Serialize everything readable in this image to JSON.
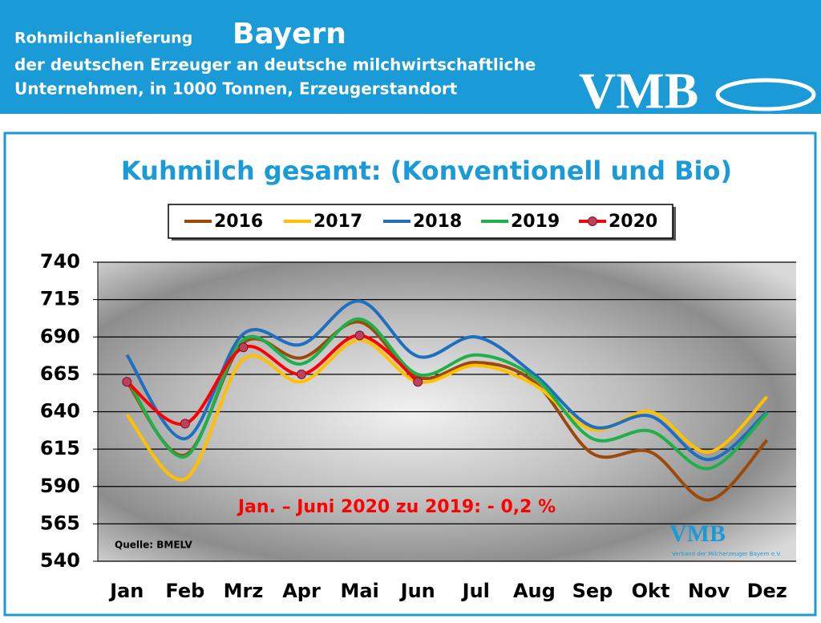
{
  "header": {
    "title_small": "Rohmilchanlieferung",
    "title_large": "Bayern",
    "line2": "der deutschen Erzeuger an deutsche milchwirtschaftliche",
    "line3": "Unternehmen, in 1000 Tonnen, Erzeugerstandort",
    "logo": "VMB"
  },
  "chart_data": {
    "type": "line",
    "title": "Kuhmilch gesamt: (Konventionell und Bio)",
    "annotation": "Jan. – Juni 2020 zu 2019: - 0,2 %",
    "source": "Quelle:  BMELV",
    "logo": "VMB",
    "logo_caption": "Verband der Milcherzeuger Bayern e.V.",
    "categories": [
      "Jan",
      "Feb",
      "Mrz",
      "Apr",
      "Mai",
      "Jun",
      "Jul",
      "Aug",
      "Sep",
      "Okt",
      "Nov",
      "Dez"
    ],
    "series": [
      {
        "name": "2016",
        "color": "#9b4a0c",
        "values": [
          660,
          611,
          686,
          676,
          700,
          663,
          673,
          660,
          612,
          613,
          581,
          621
        ]
      },
      {
        "name": "2017",
        "color": "#ffc000",
        "values": [
          638,
          595,
          675,
          660,
          688,
          660,
          671,
          658,
          628,
          640,
          613,
          650
        ]
      },
      {
        "name": "2018",
        "color": "#1f6fc0",
        "values": [
          678,
          622,
          692,
          685,
          714,
          677,
          690,
          665,
          630,
          637,
          608,
          640
        ]
      },
      {
        "name": "2019",
        "color": "#1fb04a",
        "values": [
          662,
          610,
          688,
          672,
          702,
          665,
          678,
          663,
          622,
          627,
          602,
          639
        ]
      },
      {
        "name": "2020",
        "color": "#ff0000",
        "marker": true,
        "values": [
          660,
          632,
          683,
          665,
          691,
          660,
          null,
          null,
          null,
          null,
          null,
          null
        ]
      }
    ],
    "ylim": [
      540,
      740
    ],
    "yticks": [
      540,
      565,
      590,
      615,
      640,
      665,
      690,
      715,
      740
    ],
    "grid": true,
    "legend": "top"
  }
}
